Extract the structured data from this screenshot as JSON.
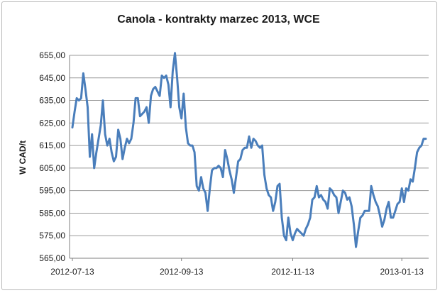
{
  "chart_data": {
    "type": "line",
    "title": "Canola - kontrakty marzec 2013, WCE",
    "xlabel": "",
    "ylabel": "W CAD/t",
    "ylim": [
      565,
      655
    ],
    "yticks": [
      565,
      575,
      585,
      595,
      605,
      615,
      625,
      635,
      645,
      655
    ],
    "ytick_labels": [
      "565,00",
      "575,00",
      "585,00",
      "595,00",
      "605,00",
      "615,00",
      "625,00",
      "635,00",
      "645,00",
      "655,00"
    ],
    "xtick_labels": [
      "2012-07-13",
      "2012-09-13",
      "2012-11-13",
      "2013-01-13"
    ],
    "grid": true,
    "legend": "none",
    "line_color": "#4a7ebb",
    "series": [
      {
        "values": [
          623,
          630,
          636,
          635,
          636,
          647,
          640,
          632,
          610,
          620,
          605,
          612,
          618,
          624,
          635,
          620,
          615,
          618,
          612,
          608,
          610,
          622,
          618,
          609,
          614,
          618,
          616,
          618,
          625,
          636,
          636,
          628,
          629,
          630,
          632,
          625,
          637,
          640,
          641,
          639,
          637,
          646,
          645,
          646,
          642,
          632,
          648,
          656,
          645,
          632,
          627,
          638,
          623,
          616,
          615,
          615,
          612,
          597,
          595,
          601,
          596,
          594,
          586,
          596,
          604,
          605,
          605,
          606,
          605,
          601,
          613,
          609,
          604,
          600,
          594,
          601,
          608,
          609,
          613,
          614,
          614,
          619,
          614,
          618,
          617,
          615,
          614,
          615,
          602,
          596,
          593,
          592,
          586,
          590,
          597,
          598,
          583,
          575,
          573,
          583,
          576,
          573,
          576,
          578,
          577,
          576,
          575,
          578,
          580,
          583,
          591,
          592,
          597,
          592,
          593,
          591,
          590,
          587,
          596,
          595,
          593,
          592,
          585,
          590,
          595,
          594,
          591,
          592,
          588,
          580,
          570,
          577,
          583,
          584,
          586,
          586,
          586,
          597,
          593,
          590,
          588,
          584,
          579,
          582,
          587,
          590,
          583,
          583,
          586,
          589,
          590,
          596,
          590,
          596,
          595,
          600,
          599,
          605,
          612,
          614,
          615,
          618,
          618
        ]
      }
    ]
  }
}
